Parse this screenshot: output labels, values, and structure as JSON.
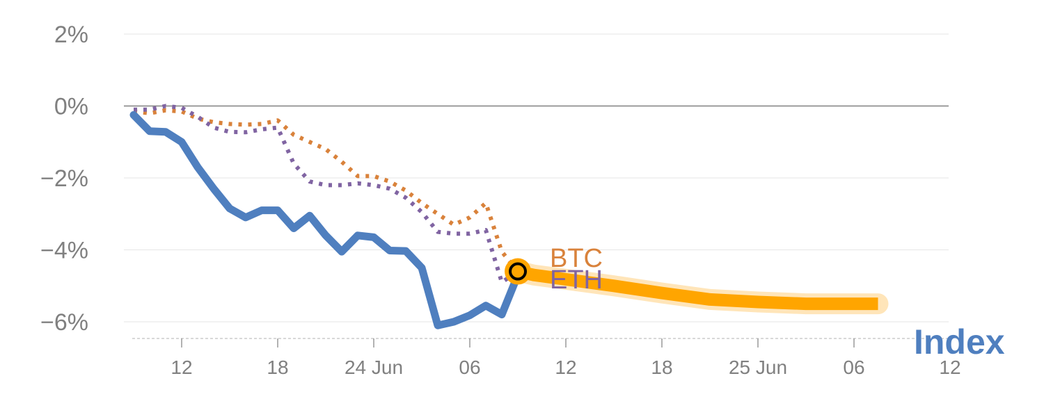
{
  "chart_data": {
    "type": "line",
    "ylim": [
      -6.5,
      2.5
    ],
    "y_ticks": [
      {
        "value": 2,
        "label": "2%"
      },
      {
        "value": 0,
        "label": "0%"
      },
      {
        "value": -2,
        "label": "−2%"
      },
      {
        "value": -4,
        "label": "−4%"
      },
      {
        "value": -6,
        "label": "−6%"
      }
    ],
    "x_ticks": [
      "12",
      "18",
      "24 Jun",
      "06",
      "12",
      "18",
      "25 Jun",
      "06",
      "12"
    ],
    "grid": true,
    "legend": "inline-labels",
    "colors": {
      "index": "#4f7fbf",
      "btc": "#d9823b",
      "eth": "#8064a2",
      "forecast": "#ffa500",
      "forecast_band": "#ffd080",
      "grid": "#e6e6e6",
      "zero_line": "#808080"
    },
    "series": [
      {
        "name": "Index",
        "style": "solid",
        "points": [
          [
            0,
            -0.25
          ],
          [
            1,
            -0.7
          ],
          [
            2,
            -0.72
          ],
          [
            3,
            -1.0
          ],
          [
            4,
            -1.7
          ],
          [
            5,
            -2.3
          ],
          [
            6,
            -2.85
          ],
          [
            7,
            -3.1
          ],
          [
            8,
            -2.9
          ],
          [
            9,
            -2.9
          ],
          [
            10,
            -3.4
          ],
          [
            11,
            -3.05
          ],
          [
            12,
            -3.6
          ],
          [
            13,
            -4.05
          ],
          [
            14,
            -3.6
          ],
          [
            15,
            -3.65
          ],
          [
            16,
            -4.02
          ],
          [
            17,
            -4.03
          ],
          [
            18,
            -4.5
          ],
          [
            19,
            -6.1
          ],
          [
            20,
            -6.0
          ],
          [
            21,
            -5.82
          ],
          [
            22,
            -5.55
          ],
          [
            23,
            -5.8
          ],
          [
            24,
            -4.7
          ]
        ]
      },
      {
        "name": "BTC",
        "style": "dotted",
        "points": [
          [
            0,
            -0.15
          ],
          [
            1,
            -0.2
          ],
          [
            2,
            -0.12
          ],
          [
            3,
            -0.15
          ],
          [
            4,
            -0.35
          ],
          [
            5,
            -0.45
          ],
          [
            6,
            -0.5
          ],
          [
            7,
            -0.52
          ],
          [
            8,
            -0.5
          ],
          [
            9,
            -0.4
          ],
          [
            10,
            -0.8
          ],
          [
            11,
            -1.0
          ],
          [
            12,
            -1.2
          ],
          [
            13,
            -1.55
          ],
          [
            14,
            -1.95
          ],
          [
            15,
            -1.95
          ],
          [
            16,
            -2.1
          ],
          [
            17,
            -2.35
          ],
          [
            18,
            -2.7
          ],
          [
            19,
            -3.0
          ],
          [
            20,
            -3.3
          ],
          [
            21,
            -3.1
          ],
          [
            22,
            -2.7
          ],
          [
            23,
            -4.05
          ],
          [
            24,
            -4.6
          ]
        ]
      },
      {
        "name": "ETH",
        "style": "dotted",
        "points": [
          [
            0,
            -0.1
          ],
          [
            1,
            -0.1
          ],
          [
            2,
            0.0
          ],
          [
            3,
            -0.05
          ],
          [
            4,
            -0.3
          ],
          [
            5,
            -0.6
          ],
          [
            6,
            -0.72
          ],
          [
            7,
            -0.73
          ],
          [
            8,
            -0.65
          ],
          [
            9,
            -0.6
          ],
          [
            10,
            -1.6
          ],
          [
            11,
            -2.1
          ],
          [
            12,
            -2.2
          ],
          [
            13,
            -2.2
          ],
          [
            14,
            -2.15
          ],
          [
            15,
            -2.2
          ],
          [
            16,
            -2.3
          ],
          [
            17,
            -2.55
          ],
          [
            18,
            -2.95
          ],
          [
            19,
            -3.5
          ],
          [
            20,
            -3.55
          ],
          [
            21,
            -3.55
          ],
          [
            22,
            -3.45
          ],
          [
            23,
            -4.9
          ],
          [
            24,
            -4.6
          ]
        ]
      },
      {
        "name": "",
        "style": "forecast-band",
        "points": [
          [
            24,
            -4.6
          ],
          [
            25,
            -4.7
          ],
          [
            27,
            -4.82
          ],
          [
            30,
            -5.0
          ],
          [
            33,
            -5.2
          ],
          [
            36,
            -5.38
          ],
          [
            39,
            -5.45
          ],
          [
            42,
            -5.5
          ],
          [
            45,
            -5.5
          ],
          [
            46.5,
            -5.5
          ]
        ]
      }
    ],
    "marker": {
      "x": 24,
      "y": -4.6
    },
    "labels": {
      "btc": "BTC",
      "eth": "ETH",
      "index": "Index"
    }
  }
}
